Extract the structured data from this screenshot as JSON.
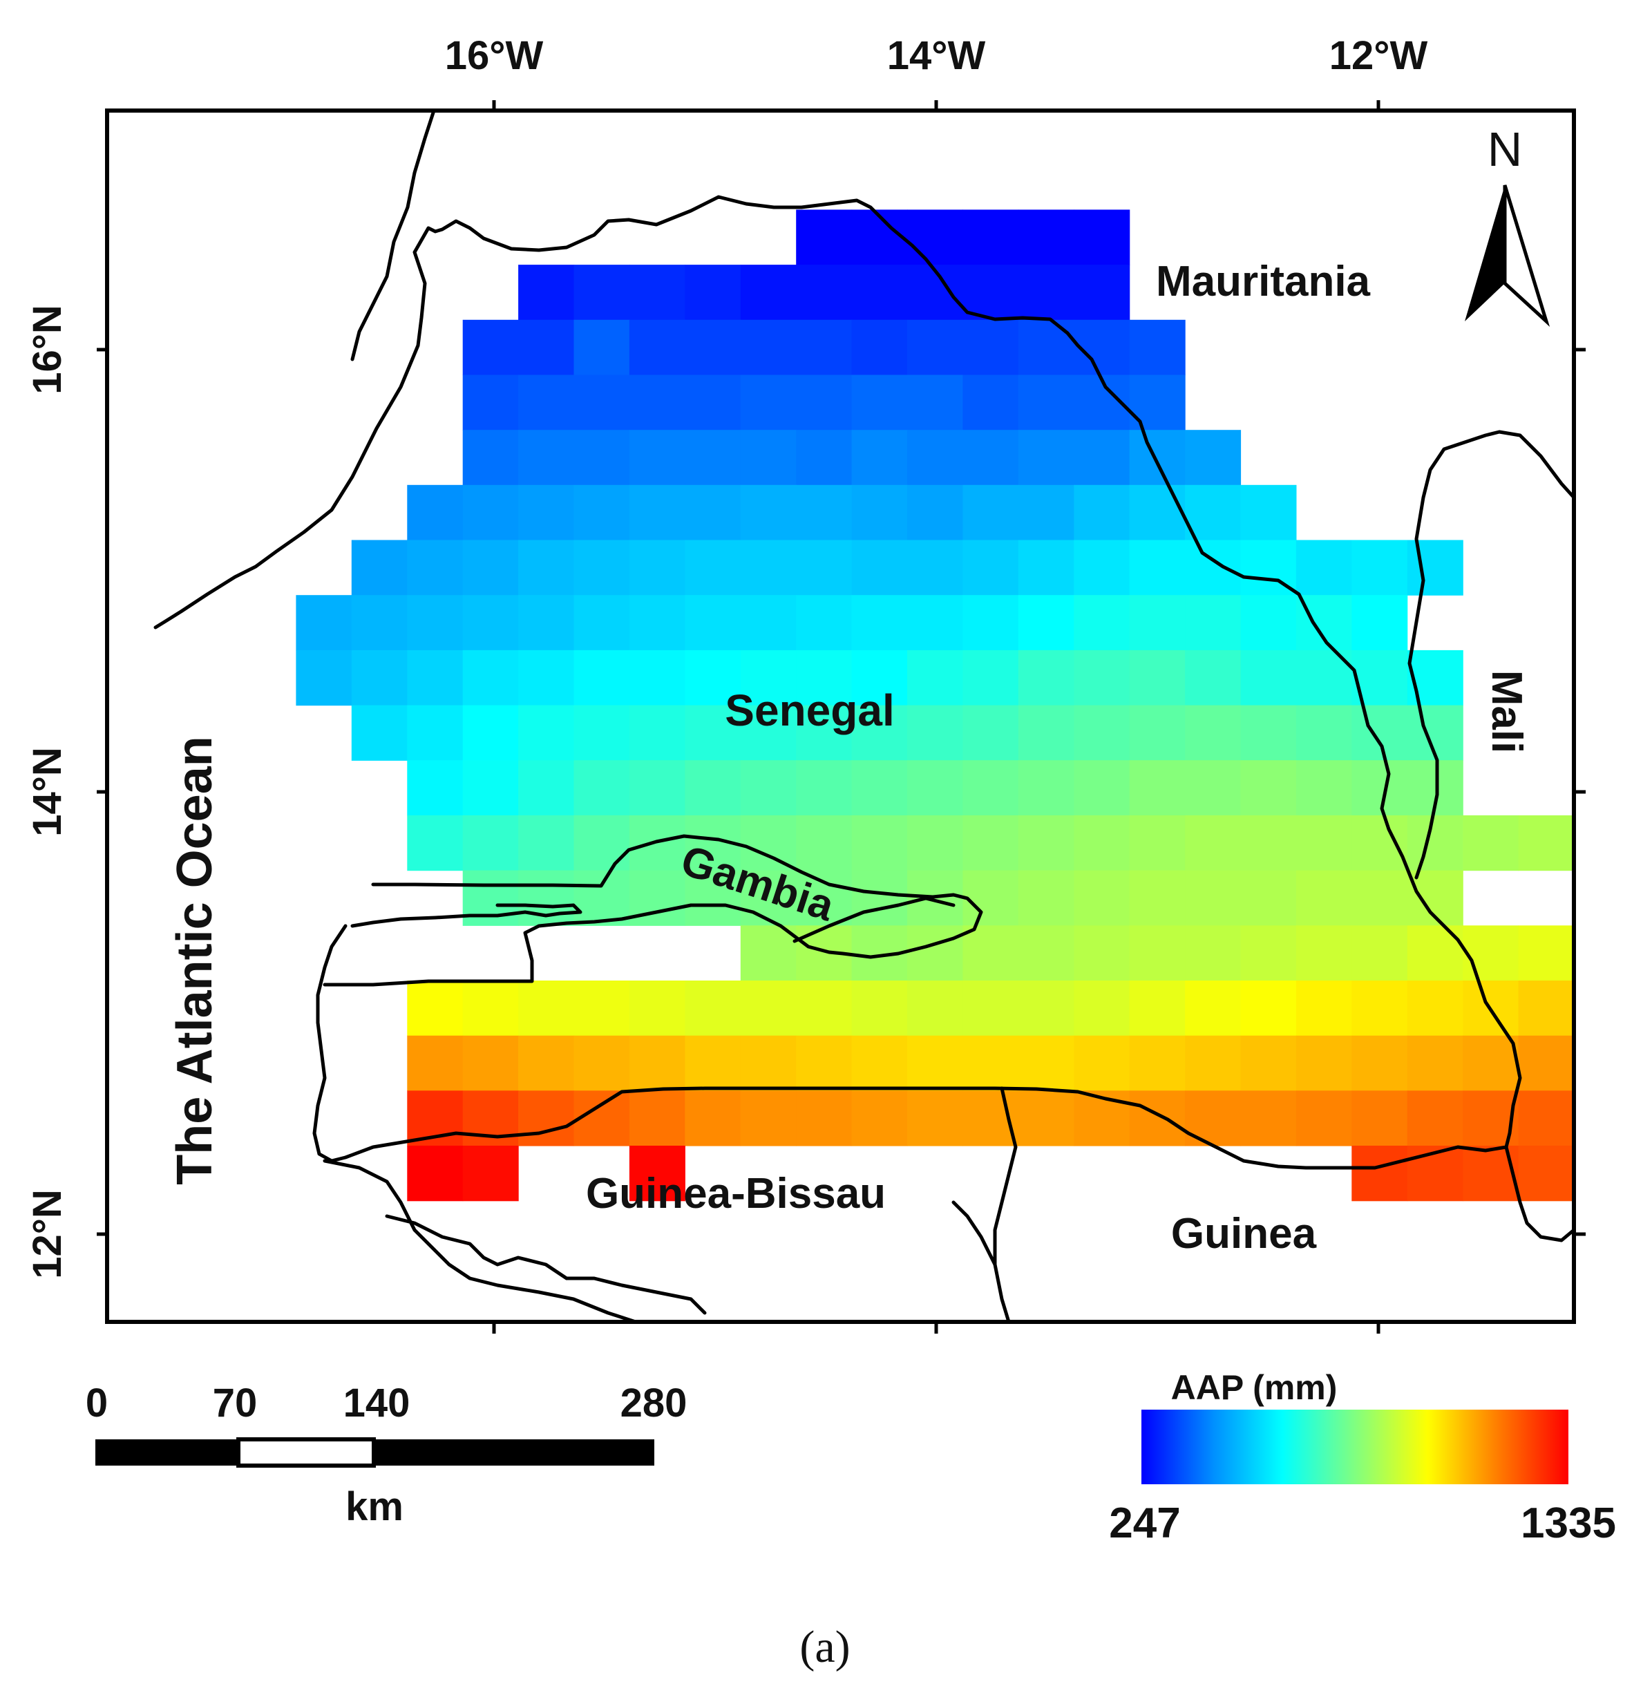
{
  "axes": {
    "lon_ticks": [
      "16°W",
      "14°W",
      "12°W"
    ],
    "lat_ticks": [
      "16°N",
      "14°N",
      "12°N"
    ]
  },
  "map_extent": {
    "lon_min": -17.75,
    "lon_max": -11.15,
    "lat_min": 11.6,
    "lat_max": 17.1
  },
  "labels": {
    "senegal": "Senegal",
    "mauritania": "Mauritania",
    "mali": "Mali",
    "gambia": "Gambia",
    "guinea_bissau": "Guinea-Bissau",
    "guinea": "Guinea",
    "ocean": "The Atlantic Ocean",
    "north": "N"
  },
  "scale_bar": {
    "ticks": [
      "0",
      "70",
      "140",
      "280"
    ],
    "unit": "km"
  },
  "legend": {
    "title": "AAP (mm)",
    "min_label": "247",
    "max_label": "1335",
    "min": 247,
    "max": 1335,
    "colors": [
      "#0000ff",
      "#0090ff",
      "#00ffff",
      "#80ff80",
      "#ffff00",
      "#ff8000",
      "#ff0000"
    ]
  },
  "caption": "(a)",
  "grid": {
    "lon0": -16.9,
    "lat0": 16.65,
    "cell": 0.25,
    "rows": [
      {
        "start": 9,
        "values": [
          250,
          250,
          250,
          250,
          250,
          250
        ]
      },
      {
        "start": 4,
        "values": [
          280,
          300,
          300,
          290,
          270,
          270,
          270,
          270,
          270,
          270,
          270
        ]
      },
      {
        "start": 3,
        "values": [
          320,
          320,
          370,
          330,
          330,
          330,
          330,
          320,
          330,
          330,
          340,
          340,
          350
        ]
      },
      {
        "start": 3,
        "values": [
          350,
          360,
          360,
          360,
          360,
          370,
          370,
          380,
          380,
          360,
          370,
          370,
          380
        ]
      },
      {
        "start": 3,
        "values": [
          390,
          400,
          400,
          410,
          410,
          410,
          400,
          420,
          410,
          410,
          420,
          420,
          450,
          460
        ]
      },
      {
        "start": 2,
        "values": [
          430,
          440,
          450,
          460,
          470,
          470,
          480,
          480,
          470,
          460,
          480,
          480,
          510,
          530,
          550,
          560
        ]
      },
      {
        "start": 1,
        "values": [
          460,
          470,
          480,
          500,
          510,
          520,
          530,
          530,
          530,
          520,
          520,
          530,
          550,
          570,
          590,
          590,
          600,
          570,
          580,
          560
        ]
      },
      {
        "start": 0,
        "values": [
          480,
          490,
          500,
          510,
          520,
          540,
          550,
          560,
          560,
          570,
          580,
          580,
          590,
          610,
          630,
          640,
          640,
          620,
          630,
          610
        ]
      },
      {
        "start": 0,
        "values": [
          500,
          520,
          540,
          570,
          580,
          600,
          600,
          610,
          620,
          620,
          610,
          640,
          650,
          680,
          690,
          700,
          680,
          650,
          650,
          640,
          620
        ]
      },
      {
        "start": 1,
        "values": [
          560,
          580,
          610,
          630,
          640,
          650,
          660,
          660,
          670,
          680,
          690,
          700,
          720,
          730,
          740,
          750,
          740,
          730,
          720,
          720
        ]
      },
      {
        "start": 2,
        "values": [
          600,
          620,
          650,
          680,
          690,
          710,
          720,
          730,
          740,
          750,
          760,
          770,
          780,
          800,
          800,
          810,
          800,
          790,
          790
        ]
      },
      {
        "start": 2,
        "values": [
          660,
          680,
          700,
          730,
          750,
          760,
          770,
          780,
          790,
          800,
          810,
          820,
          830,
          840,
          850,
          850,
          850,
          850,
          840,
          850,
          860,
          850
        ]
      },
      {
        "start": 3,
        "values": [
          730,
          740,
          750,
          760,
          770,
          780,
          780,
          790,
          810,
          830,
          840,
          850,
          860,
          860,
          860,
          870,
          870,
          870
        ]
      },
      {
        "start": 8,
        "values": [
          840,
          850,
          830,
          840,
          860,
          860,
          870,
          880,
          880,
          890,
          900,
          900,
          920,
          930,
          940
        ]
      },
      {
        "start": 2,
        "values": [
          970,
          960,
          950,
          950,
          940,
          930,
          930,
          930,
          920,
          910,
          910,
          910,
          920,
          940,
          960,
          970,
          990,
          1000,
          1010,
          1020,
          1040
        ]
      },
      {
        "start": 2,
        "values": [
          1120,
          1110,
          1090,
          1080,
          1070,
          1050,
          1050,
          1040,
          1030,
          1020,
          1020,
          1020,
          1030,
          1040,
          1050,
          1060,
          1070,
          1080,
          1090,
          1100,
          1120,
          1150,
          1160
        ]
      },
      {
        "start": 2,
        "values": [
          1270,
          1240,
          1210,
          1190,
          1170,
          1140,
          1130,
          1130,
          1120,
          1110,
          1110,
          1110,
          1120,
          1130,
          1140,
          1140,
          1150,
          1160,
          1180,
          1190,
          1200,
          1210,
          1240
        ]
      },
      {
        "start": 2,
        "values": [
          1335,
          1320,
          null,
          null,
          1330,
          null,
          null,
          null,
          null,
          null,
          null,
          null,
          null,
          null,
          null,
          null,
          null,
          1250,
          1240,
          1230,
          1220,
          1230,
          1240
        ]
      }
    ]
  }
}
